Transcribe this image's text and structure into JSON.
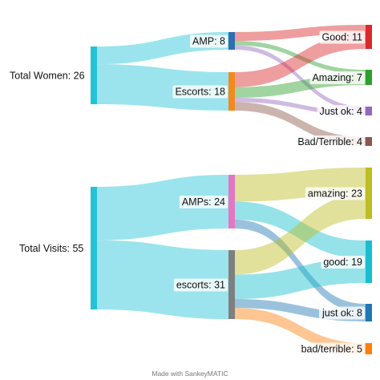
{
  "credit": "Made with SankeyMATIC",
  "diagrams": [
    {
      "nodes": [
        {
          "id": "tw",
          "label": "Total Women: 26",
          "color": "#22c3d6"
        },
        {
          "id": "amp",
          "label": "AMP: 8",
          "color": "#2e6fb0"
        },
        {
          "id": "esc",
          "label": "Escorts: 18",
          "color": "#f28a1e"
        },
        {
          "id": "good",
          "label": "Good: 11",
          "color": "#d9292b"
        },
        {
          "id": "amazing",
          "label": "Amazing: 7",
          "color": "#2ca02c"
        },
        {
          "id": "justok",
          "label": "Just ok: 4",
          "color": "#9467bd"
        },
        {
          "id": "bad",
          "label": "Bad/Terrible: 4",
          "color": "#8c564b"
        }
      ],
      "flows": [
        {
          "from": "Total Women",
          "to": "AMP",
          "value": 8,
          "color": "#22c3d6"
        },
        {
          "from": "Total Women",
          "to": "Escorts",
          "value": 18,
          "color": "#22c3d6"
        },
        {
          "from": "AMP",
          "to": "Good",
          "value": 4,
          "color": "#d9292b"
        },
        {
          "from": "AMP",
          "to": "Amazing",
          "value": 2,
          "color": "#2ca02c"
        },
        {
          "from": "AMP",
          "to": "Just ok",
          "value": 2,
          "color": "#9467bd"
        },
        {
          "from": "Escorts",
          "to": "Good",
          "value": 7,
          "color": "#d9292b"
        },
        {
          "from": "Escorts",
          "to": "Amazing",
          "value": 5,
          "color": "#2ca02c"
        },
        {
          "from": "Escorts",
          "to": "Just ok",
          "value": 2,
          "color": "#9467bd"
        },
        {
          "from": "Escorts",
          "to": "Bad/Terrible",
          "value": 4,
          "color": "#8c564b"
        }
      ]
    },
    {
      "nodes": [
        {
          "id": "tv",
          "label": "Total Visits: 55",
          "color": "#22c3d6"
        },
        {
          "id": "amps",
          "label": "AMPs: 24",
          "color": "#e377c2"
        },
        {
          "id": "escorts",
          "label": "escorts: 31",
          "color": "#7f7f7f"
        },
        {
          "id": "amazing2",
          "label": "amazing: 23",
          "color": "#bcbd22"
        },
        {
          "id": "good2",
          "label": "good: 19",
          "color": "#17becf"
        },
        {
          "id": "justok2",
          "label": "just ok: 8",
          "color": "#1f77b4"
        },
        {
          "id": "bad2",
          "label": "bad/terrible: 5",
          "color": "#ff7f0e"
        }
      ],
      "flows": [
        {
          "from": "Total Visits",
          "to": "AMPs",
          "value": 24,
          "color": "#22c3d6"
        },
        {
          "from": "Total Visits",
          "to": "escorts",
          "value": 31,
          "color": "#22c3d6"
        },
        {
          "from": "AMPs",
          "to": "amazing",
          "value": 12,
          "color": "#bcbd22"
        },
        {
          "from": "AMPs",
          "to": "good",
          "value": 8,
          "color": "#17becf"
        },
        {
          "from": "AMPs",
          "to": "just ok",
          "value": 4,
          "color": "#1f77b4"
        },
        {
          "from": "escorts",
          "to": "amazing",
          "value": 11,
          "color": "#bcbd22"
        },
        {
          "from": "escorts",
          "to": "good",
          "value": 11,
          "color": "#17becf"
        },
        {
          "from": "escorts",
          "to": "just ok",
          "value": 4,
          "color": "#1f77b4"
        },
        {
          "from": "escorts",
          "to": "bad/terrible",
          "value": 5,
          "color": "#ff7f0e"
        }
      ]
    }
  ]
}
